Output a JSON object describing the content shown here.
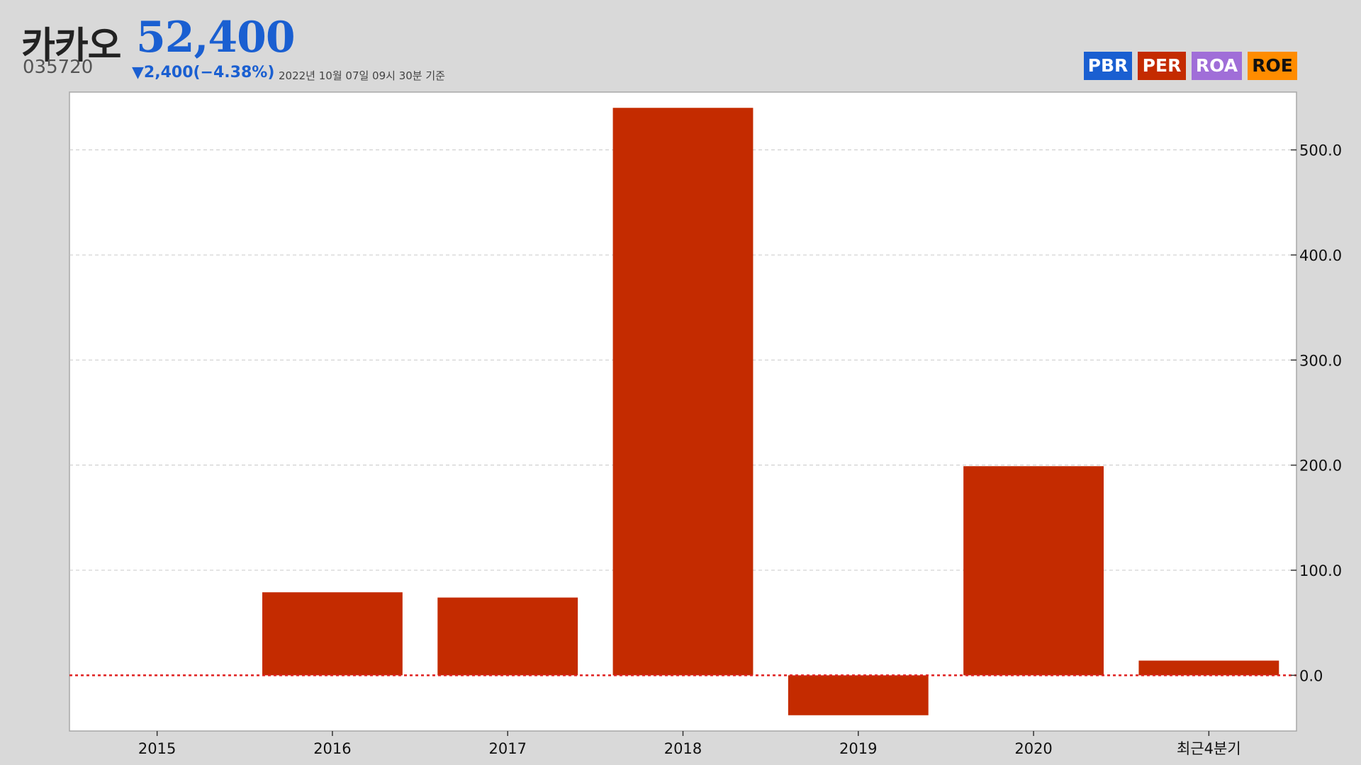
{
  "header": {
    "name": "카카오",
    "price": "52,400",
    "code": "035720",
    "change": "▼2,400(−4.38%)",
    "timestamp": "2022년 10월 07일 09시 30분 기준"
  },
  "tabs": [
    {
      "label": "PBR",
      "color": "#1a5fd1",
      "text_color": "#ffffff"
    },
    {
      "label": "PER",
      "color": "#c42b00",
      "text_color": "#ffffff"
    },
    {
      "label": "ROA",
      "color": "#a06ed8",
      "text_color": "#ffffff"
    },
    {
      "label": "ROE",
      "color": "#ff8c00",
      "text_color": "#111111"
    }
  ],
  "colors": {
    "bar": "#c42b00",
    "price": "#1a5fd1",
    "zero_line": "#e02020"
  },
  "chart_data": {
    "type": "bar",
    "series": [
      {
        "name": "PER",
        "values": [
          0,
          79,
          74,
          540,
          -38,
          199,
          14
        ]
      }
    ],
    "categories": [
      "2015",
      "2016",
      "2017",
      "2018",
      "2019",
      "2020",
      "최근4분기"
    ],
    "yticks": [
      0,
      100,
      200,
      300,
      400,
      500
    ],
    "ytick_labels": [
      "0.0",
      "100.0",
      "200.0",
      "300.0",
      "400.0",
      "500.0"
    ],
    "ylim": [
      -53,
      555
    ],
    "grid": true,
    "y_axis_side": "right"
  }
}
